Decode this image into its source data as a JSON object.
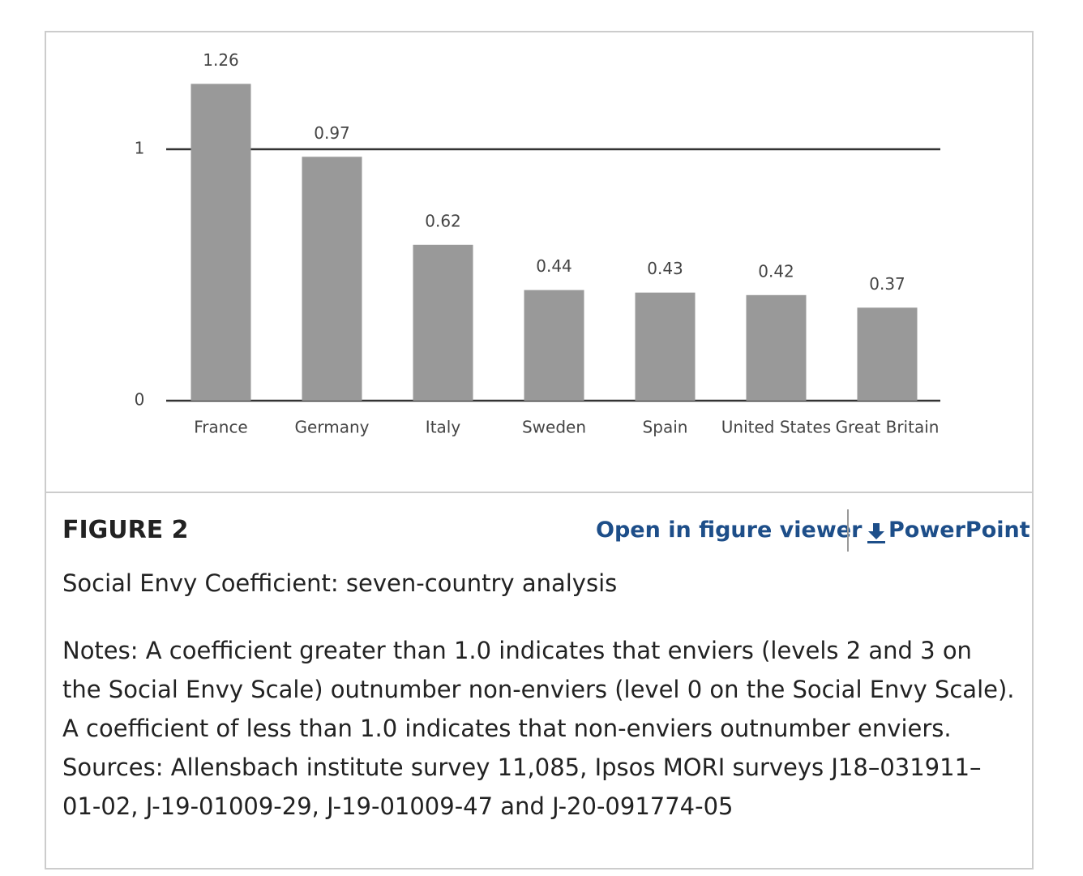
{
  "chart_data": {
    "type": "bar",
    "categories": [
      "France",
      "Germany",
      "Italy",
      "Sweden",
      "Spain",
      "United States",
      "Great Britain"
    ],
    "values": [
      1.26,
      0.97,
      0.62,
      0.44,
      0.43,
      0.42,
      0.37
    ],
    "color": "#999999",
    "ylim": [
      0,
      1.4
    ],
    "yticks": [
      0,
      1
    ],
    "grid": true
  },
  "figure": {
    "label": "FIGURE 2",
    "links": [
      "Open in figure viewer",
      "PowerPoint"
    ],
    "caption": "Social Envy Coefficient: seven-country analysis",
    "notes": [
      "Notes: A coefficient greater than 1.0 indicates that enviers (levels 2 and 3 on",
      "the Social Envy Scale) outnumber non-enviers (level 0 on the Social Envy Scale).",
      "A coefficient of less than 1.0 indicates that non-enviers outnumber enviers.",
      "Sources: Allensbach institute survey 11,085, Ipsos MORI surveys J18–031911–",
      "01-02, J-19-01009-29, J-19-01009-47 and J-20-091774-05"
    ]
  }
}
